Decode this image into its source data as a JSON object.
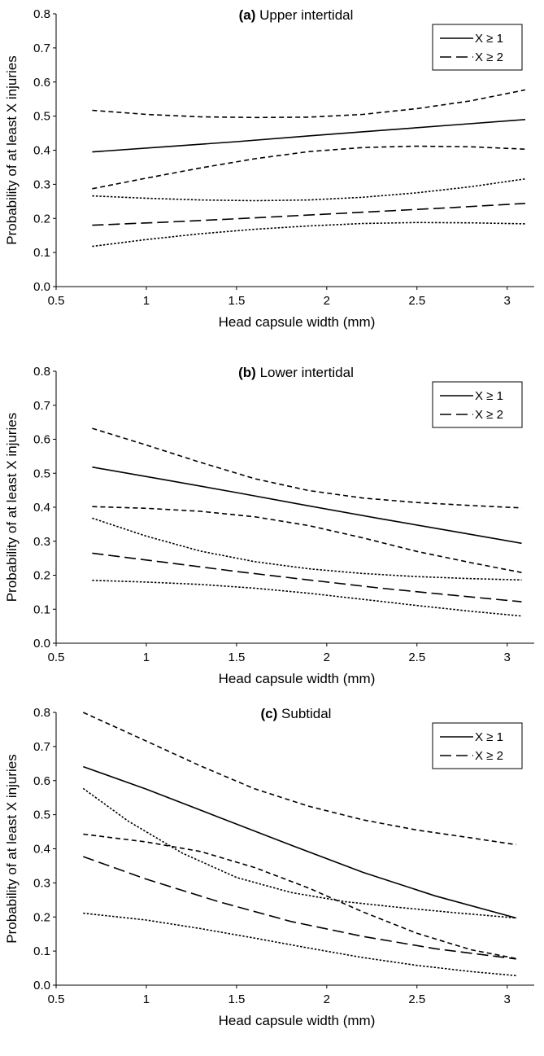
{
  "figure": {
    "panels": [
      {
        "id": "a",
        "panel_letter": "(a)",
        "panel_name": "Upper intertidal"
      },
      {
        "id": "b",
        "panel_letter": "(b)",
        "panel_name": "Lower intertidal"
      },
      {
        "id": "c",
        "panel_letter": "(c)",
        "panel_name": "Subtidal"
      }
    ]
  },
  "chart_data": [
    {
      "type": "line",
      "title": "(a) Upper intertidal",
      "xlabel": "Head capsule width (mm)",
      "ylabel": "Probability of at least X injuries",
      "xlim": [
        0.5,
        3.15
      ],
      "ylim": [
        0,
        0.8
      ],
      "xticks": [
        "0.5",
        "1",
        "1.5",
        "2",
        "2.5",
        "3"
      ],
      "yticks": [
        "0.0",
        "0.1",
        "0.2",
        "0.3",
        "0.4",
        "0.5",
        "0.6",
        "0.7",
        "0.8"
      ],
      "grid": false,
      "legend_position": "top-right",
      "legend": [
        "X ≥ 1",
        "X ≥ 2"
      ],
      "series": [
        {
          "name": "X ≥ 1",
          "style": "solid",
          "x": [
            0.7,
            1.1,
            1.5,
            1.9,
            2.3,
            2.7,
            3.1
          ],
          "y": [
            0.395,
            0.41,
            0.425,
            0.442,
            0.458,
            0.474,
            0.49
          ]
        },
        {
          "style": "dash-short",
          "x": [
            0.7,
            1.0,
            1.3,
            1.6,
            1.9,
            2.2,
            2.5,
            2.8,
            3.1
          ],
          "y": [
            0.517,
            0.505,
            0.498,
            0.496,
            0.497,
            0.505,
            0.522,
            0.545,
            0.577
          ]
        },
        {
          "style": "dash-short",
          "x": [
            0.7,
            1.0,
            1.3,
            1.6,
            1.9,
            2.2,
            2.5,
            2.8,
            3.1
          ],
          "y": [
            0.287,
            0.318,
            0.348,
            0.375,
            0.396,
            0.408,
            0.412,
            0.41,
            0.403
          ]
        },
        {
          "name": "X ≥ 2",
          "style": "dash-long",
          "x": [
            0.7,
            1.1,
            1.5,
            1.9,
            2.3,
            2.7,
            3.1
          ],
          "y": [
            0.18,
            0.189,
            0.199,
            0.21,
            0.221,
            0.232,
            0.244
          ]
        },
        {
          "style": "dot-fine",
          "x": [
            0.7,
            1.0,
            1.3,
            1.6,
            1.9,
            2.2,
            2.5,
            2.8,
            3.1
          ],
          "y": [
            0.266,
            0.259,
            0.254,
            0.252,
            0.254,
            0.262,
            0.275,
            0.293,
            0.316
          ]
        },
        {
          "style": "dot-fine",
          "x": [
            0.7,
            1.0,
            1.3,
            1.6,
            1.9,
            2.2,
            2.5,
            2.8,
            3.1
          ],
          "y": [
            0.118,
            0.138,
            0.155,
            0.168,
            0.178,
            0.185,
            0.188,
            0.187,
            0.184
          ]
        }
      ]
    },
    {
      "type": "line",
      "title": "(b) Lower intertidal",
      "xlabel": "Head capsule width (mm)",
      "ylabel": "Probability of at least X injuries",
      "xlim": [
        0.5,
        3.15
      ],
      "ylim": [
        0,
        0.8
      ],
      "xticks": [
        "0.5",
        "1",
        "1.5",
        "2",
        "2.5",
        "3"
      ],
      "yticks": [
        "0.0",
        "0.1",
        "0.2",
        "0.3",
        "0.4",
        "0.5",
        "0.6",
        "0.7",
        "0.8"
      ],
      "grid": false,
      "legend_position": "top-right",
      "legend": [
        "X ≥ 1",
        "X ≥ 2"
      ],
      "series": [
        {
          "name": "X ≥ 1",
          "style": "solid",
          "x": [
            0.7,
            1.1,
            1.5,
            1.9,
            2.3,
            2.7,
            3.08
          ],
          "y": [
            0.518,
            0.481,
            0.443,
            0.404,
            0.366,
            0.329,
            0.294
          ]
        },
        {
          "style": "dash-short",
          "x": [
            0.7,
            1.0,
            1.3,
            1.6,
            1.9,
            2.2,
            2.5,
            2.8,
            3.08
          ],
          "y": [
            0.632,
            0.583,
            0.532,
            0.484,
            0.449,
            0.427,
            0.414,
            0.405,
            0.398
          ]
        },
        {
          "style": "dash-short",
          "x": [
            0.7,
            1.0,
            1.3,
            1.6,
            1.9,
            2.2,
            2.5,
            2.8,
            3.08
          ],
          "y": [
            0.402,
            0.397,
            0.388,
            0.372,
            0.346,
            0.31,
            0.27,
            0.237,
            0.208
          ]
        },
        {
          "name": "X ≥ 2",
          "style": "dash-long",
          "x": [
            0.7,
            1.1,
            1.5,
            1.9,
            2.3,
            2.7,
            3.08
          ],
          "y": [
            0.265,
            0.238,
            0.211,
            0.186,
            0.162,
            0.141,
            0.122
          ]
        },
        {
          "style": "dot-fine",
          "x": [
            0.7,
            1.0,
            1.3,
            1.6,
            1.9,
            2.2,
            2.5,
            2.8,
            3.08
          ],
          "y": [
            0.368,
            0.315,
            0.271,
            0.24,
            0.219,
            0.205,
            0.196,
            0.19,
            0.186
          ]
        },
        {
          "style": "dot-fine",
          "x": [
            0.7,
            1.0,
            1.3,
            1.6,
            1.9,
            2.2,
            2.5,
            2.8,
            3.08
          ],
          "y": [
            0.185,
            0.18,
            0.173,
            0.162,
            0.147,
            0.129,
            0.111,
            0.094,
            0.08
          ]
        }
      ]
    },
    {
      "type": "line",
      "title": "(c) Subtidal",
      "xlabel": "Head capsule width (mm)",
      "ylabel": "Probability of at least X injuries",
      "xlim": [
        0.5,
        3.15
      ],
      "ylim": [
        0,
        0.8
      ],
      "xticks": [
        "0.5",
        "1",
        "1.5",
        "2",
        "2.5",
        "3"
      ],
      "yticks": [
        "0.0",
        "0.1",
        "0.2",
        "0.3",
        "0.4",
        "0.5",
        "0.6",
        "0.7",
        "0.8"
      ],
      "grid": false,
      "legend_position": "top-right",
      "legend": [
        "X ≥ 1",
        "X ≥ 2"
      ],
      "series": [
        {
          "name": "X ≥ 1",
          "style": "solid",
          "x": [
            0.65,
            1.0,
            1.4,
            1.8,
            2.2,
            2.6,
            3.05
          ],
          "y": [
            0.641,
            0.575,
            0.493,
            0.411,
            0.331,
            0.262,
            0.197
          ]
        },
        {
          "style": "dash-short",
          "x": [
            0.65,
            1.0,
            1.3,
            1.6,
            1.9,
            2.2,
            2.5,
            2.8,
            3.05
          ],
          "y": [
            0.8,
            0.716,
            0.643,
            0.576,
            0.525,
            0.485,
            0.455,
            0.432,
            0.412
          ]
        },
        {
          "style": "dash-short",
          "x": [
            0.65,
            1.0,
            1.3,
            1.6,
            1.9,
            2.2,
            2.5,
            2.8,
            3.05
          ],
          "y": [
            0.443,
            0.42,
            0.392,
            0.345,
            0.285,
            0.215,
            0.152,
            0.104,
            0.078
          ]
        },
        {
          "name": "X ≥ 2",
          "style": "dash-long",
          "x": [
            0.65,
            1.0,
            1.4,
            1.8,
            2.2,
            2.6,
            3.05
          ],
          "y": [
            0.377,
            0.311,
            0.245,
            0.187,
            0.143,
            0.107,
            0.077
          ]
        },
        {
          "style": "dot-fine",
          "x": [
            0.65,
            0.9,
            1.2,
            1.5,
            1.8,
            2.1,
            2.4,
            2.7,
            3.05
          ],
          "y": [
            0.577,
            0.481,
            0.387,
            0.316,
            0.272,
            0.245,
            0.228,
            0.213,
            0.197
          ]
        },
        {
          "style": "dot-fine",
          "x": [
            0.65,
            1.0,
            1.3,
            1.6,
            1.9,
            2.2,
            2.5,
            2.8,
            3.05
          ],
          "y": [
            0.211,
            0.191,
            0.166,
            0.138,
            0.109,
            0.081,
            0.058,
            0.04,
            0.028
          ]
        }
      ]
    }
  ]
}
